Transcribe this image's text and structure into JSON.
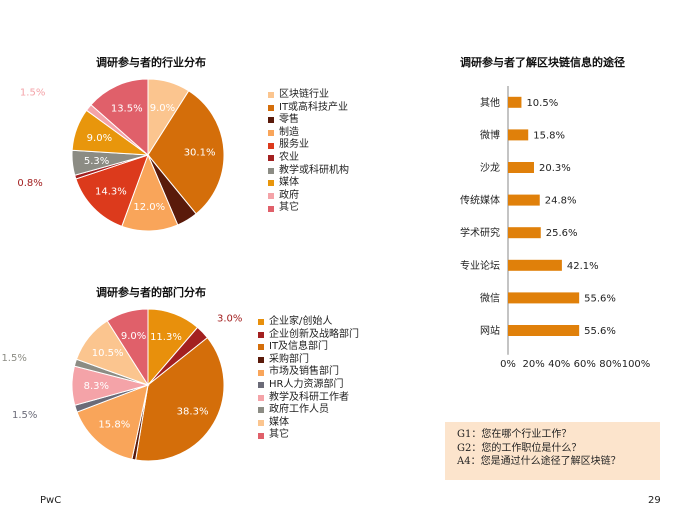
{
  "chart_data": [
    {
      "type": "pie",
      "title": "调研参与者的行业分布",
      "slices": [
        {
          "label": "区块链行业",
          "value": 9.0,
          "color": "#fbc58f",
          "value_label": "9.0%"
        },
        {
          "label": "IT或高科技产业",
          "value": 30.1,
          "color": "#d46e0a",
          "value_label": "30.1%"
        },
        {
          "label": "零售",
          "value": 4.5,
          "color": "#5a1a0a",
          "value_label": "4.5%"
        },
        {
          "label": "制造",
          "value": 12.0,
          "color": "#f9a55a",
          "value_label": "12.0%"
        },
        {
          "label": "服务业",
          "value": 14.3,
          "color": "#dc3a1c",
          "value_label": "14.3%"
        },
        {
          "label": "农业",
          "value": 0.8,
          "color": "#a32020",
          "value_label": "0.8%"
        },
        {
          "label": "教学或科研机构",
          "value": 5.3,
          "color": "#8c8c84",
          "value_label": "5.3%"
        },
        {
          "label": "媒体",
          "value": 9.0,
          "color": "#e8960c",
          "value_label": "9.0%"
        },
        {
          "label": "政府",
          "value": 1.5,
          "color": "#f4a3a8",
          "value_label": "1.5%"
        },
        {
          "label": "其它",
          "value": 13.5,
          "color": "#e0606a",
          "value_label": "13.5%"
        }
      ]
    },
    {
      "type": "pie",
      "title": "调研参与者的部门分布",
      "slices": [
        {
          "label": "企业家/创始人",
          "value": 11.3,
          "color": "#e8900c",
          "value_label": "11.3%"
        },
        {
          "label": "企业创新及战略部门",
          "value": 3.0,
          "color": "#a32020",
          "value_label": "3.0%"
        },
        {
          "label": "IT及信息部门",
          "value": 38.3,
          "color": "#d46e0a",
          "value_label": "38.3%"
        },
        {
          "label": "采购部门",
          "value": 0.8,
          "color": "#5a1a0a",
          "value_label": "0.8%"
        },
        {
          "label": "市场及销售部门",
          "value": 15.8,
          "color": "#f9a55a",
          "value_label": "15.8%"
        },
        {
          "label": "HR人力资源部门",
          "value": 1.5,
          "color": "#6b6b78",
          "value_label": "1.5%"
        },
        {
          "label": "教学及科研工作者",
          "value": 8.3,
          "color": "#f4a3a8",
          "value_label": "8.3%"
        },
        {
          "label": "政府工作人员",
          "value": 1.5,
          "color": "#8c8c84",
          "value_label": "1.5%"
        },
        {
          "label": "媒体",
          "value": 10.5,
          "color": "#fbc58f",
          "value_label": "10.5%"
        },
        {
          "label": "其它",
          "value": 9.0,
          "color": "#e0606a",
          "value_label": "9.0%"
        }
      ]
    },
    {
      "type": "bar",
      "orientation": "horizontal",
      "title": "调研参与者了解区块链信息的途径",
      "categories": [
        "其他",
        "微博",
        "沙龙",
        "传统媒体",
        "学术研究",
        "专业论坛",
        "微信",
        "网站"
      ],
      "values": [
        10.5,
        15.8,
        20.3,
        24.8,
        25.6,
        42.1,
        55.6,
        55.6
      ],
      "value_labels": [
        "10.5%",
        "15.8%",
        "20.3%",
        "24.8%",
        "25.6%",
        "42.1%",
        "55.6%",
        "55.6%"
      ],
      "xlim": [
        0,
        100
      ],
      "x_ticks": [
        "0%",
        "20%",
        "40%",
        "60%",
        "80%",
        "100%"
      ],
      "bar_color": "#e0800a",
      "grid": false
    }
  ],
  "questions": [
    "G1：您在哪个行业工作？",
    "G2：您的工作职位是什么？",
    "A4：您是通过什么途径了解区块链？"
  ],
  "footer": {
    "brand": "PwC",
    "page_number": "29"
  }
}
